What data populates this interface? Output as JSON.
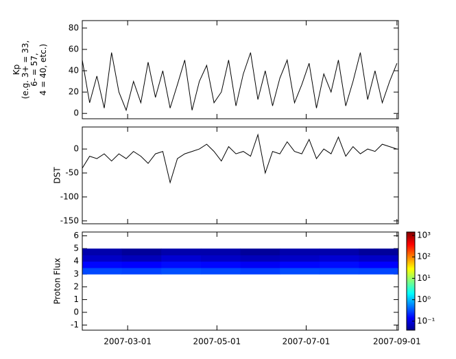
{
  "chart_data": [
    {
      "type": "line",
      "ylabel": [
        "Kp",
        "(e.g. 3+ = 33,",
        "6- = 57,",
        "4 = 40, etc.)"
      ],
      "color": "#000000",
      "xlim": [
        "2007-01-29",
        "2007-09-02"
      ],
      "ylim": [
        -5,
        87
      ],
      "yticks": [
        0,
        20,
        40,
        60,
        80
      ],
      "x": [
        "2007-01-29",
        "2007-02-03",
        "2007-02-08",
        "2007-02-13",
        "2007-02-18",
        "2007-02-23",
        "2007-02-28",
        "2007-03-05",
        "2007-03-10",
        "2007-03-15",
        "2007-03-20",
        "2007-03-25",
        "2007-03-30",
        "2007-04-04",
        "2007-04-09",
        "2007-04-14",
        "2007-04-19",
        "2007-04-24",
        "2007-04-29",
        "2007-05-04",
        "2007-05-09",
        "2007-05-14",
        "2007-05-19",
        "2007-05-24",
        "2007-05-29",
        "2007-06-03",
        "2007-06-08",
        "2007-06-13",
        "2007-06-18",
        "2007-06-23",
        "2007-06-28",
        "2007-07-03",
        "2007-07-08",
        "2007-07-13",
        "2007-07-18",
        "2007-07-23",
        "2007-07-28",
        "2007-08-02",
        "2007-08-07",
        "2007-08-12",
        "2007-08-17",
        "2007-08-22",
        "2007-08-27",
        "2007-09-01"
      ],
      "values": [
        50,
        10,
        35,
        5,
        57,
        20,
        3,
        30,
        10,
        48,
        15,
        40,
        5,
        27,
        50,
        3,
        30,
        45,
        10,
        20,
        50,
        7,
        37,
        57,
        13,
        40,
        7,
        33,
        50,
        10,
        27,
        47,
        5,
        37,
        20,
        50,
        7,
        30,
        57,
        13,
        40,
        10,
        30,
        47
      ]
    },
    {
      "type": "line",
      "ylabel": [
        "DST"
      ],
      "color": "#000000",
      "xlim": [
        "2007-01-29",
        "2007-09-02"
      ],
      "ylim": [
        -156,
        46
      ],
      "yticks": [
        -150,
        -100,
        -50,
        0
      ],
      "x": [
        "2007-01-29",
        "2007-02-03",
        "2007-02-08",
        "2007-02-13",
        "2007-02-18",
        "2007-02-23",
        "2007-02-28",
        "2007-03-05",
        "2007-03-10",
        "2007-03-15",
        "2007-03-20",
        "2007-03-25",
        "2007-03-30",
        "2007-04-04",
        "2007-04-09",
        "2007-04-14",
        "2007-04-19",
        "2007-04-24",
        "2007-04-29",
        "2007-05-04",
        "2007-05-09",
        "2007-05-14",
        "2007-05-19",
        "2007-05-24",
        "2007-05-29",
        "2007-06-03",
        "2007-06-08",
        "2007-06-13",
        "2007-06-18",
        "2007-06-23",
        "2007-06-28",
        "2007-07-03",
        "2007-07-08",
        "2007-07-13",
        "2007-07-18",
        "2007-07-23",
        "2007-07-28",
        "2007-08-02",
        "2007-08-07",
        "2007-08-12",
        "2007-08-17",
        "2007-08-22",
        "2007-08-27",
        "2007-09-01"
      ],
      "values": [
        -40,
        -15,
        -20,
        -10,
        -25,
        -10,
        -20,
        -5,
        -15,
        -30,
        -10,
        -5,
        -70,
        -20,
        -10,
        -5,
        0,
        10,
        -5,
        -25,
        5,
        -10,
        -5,
        -15,
        30,
        -50,
        -5,
        -10,
        15,
        -5,
        -10,
        20,
        -20,
        0,
        -10,
        25,
        -15,
        5,
        -10,
        0,
        -5,
        10,
        5,
        0
      ]
    },
    {
      "type": "heatmap",
      "ylabel": [
        "Proton Flux"
      ],
      "xlim": [
        "2007-01-29",
        "2007-09-02"
      ],
      "xticks": [
        "2007-03-01",
        "2007-05-01",
        "2007-07-01",
        "2007-09-01"
      ],
      "ylim": [
        -1.4,
        6.3
      ],
      "yticks": [
        -1,
        0,
        1,
        2,
        3,
        4,
        5,
        6
      ],
      "x_edges": [
        "2007-01-29",
        "2007-02-25",
        "2007-03-24",
        "2007-04-20",
        "2007-05-17",
        "2007-06-13",
        "2007-07-10",
        "2007-08-06",
        "2007-09-02"
      ],
      "y_edges": [
        3,
        3.5,
        4,
        4.5,
        5
      ],
      "values": [
        [
          0.3,
          0.28,
          0.32,
          0.3,
          0.27,
          0.31,
          0.3,
          0.29
        ],
        [
          0.15,
          0.14,
          0.16,
          0.15,
          0.13,
          0.15,
          0.16,
          0.14
        ],
        [
          0.08,
          0.07,
          0.09,
          0.08,
          0.07,
          0.08,
          0.09,
          0.08
        ],
        [
          0.06,
          0.05,
          0.06,
          0.06,
          0.05,
          0.06,
          0.06,
          0.05
        ]
      ],
      "colormap": "jet",
      "zscale": "log",
      "zlim": [
        0.038,
        1450
      ],
      "zticks": [
        {
          "value": 0.1,
          "label": "10⁻¹"
        },
        {
          "value": 1,
          "label": "10⁰"
        },
        {
          "value": 10,
          "label": "10¹"
        },
        {
          "value": 100,
          "label": "10²"
        },
        {
          "value": 1000,
          "label": "10³"
        }
      ]
    }
  ]
}
